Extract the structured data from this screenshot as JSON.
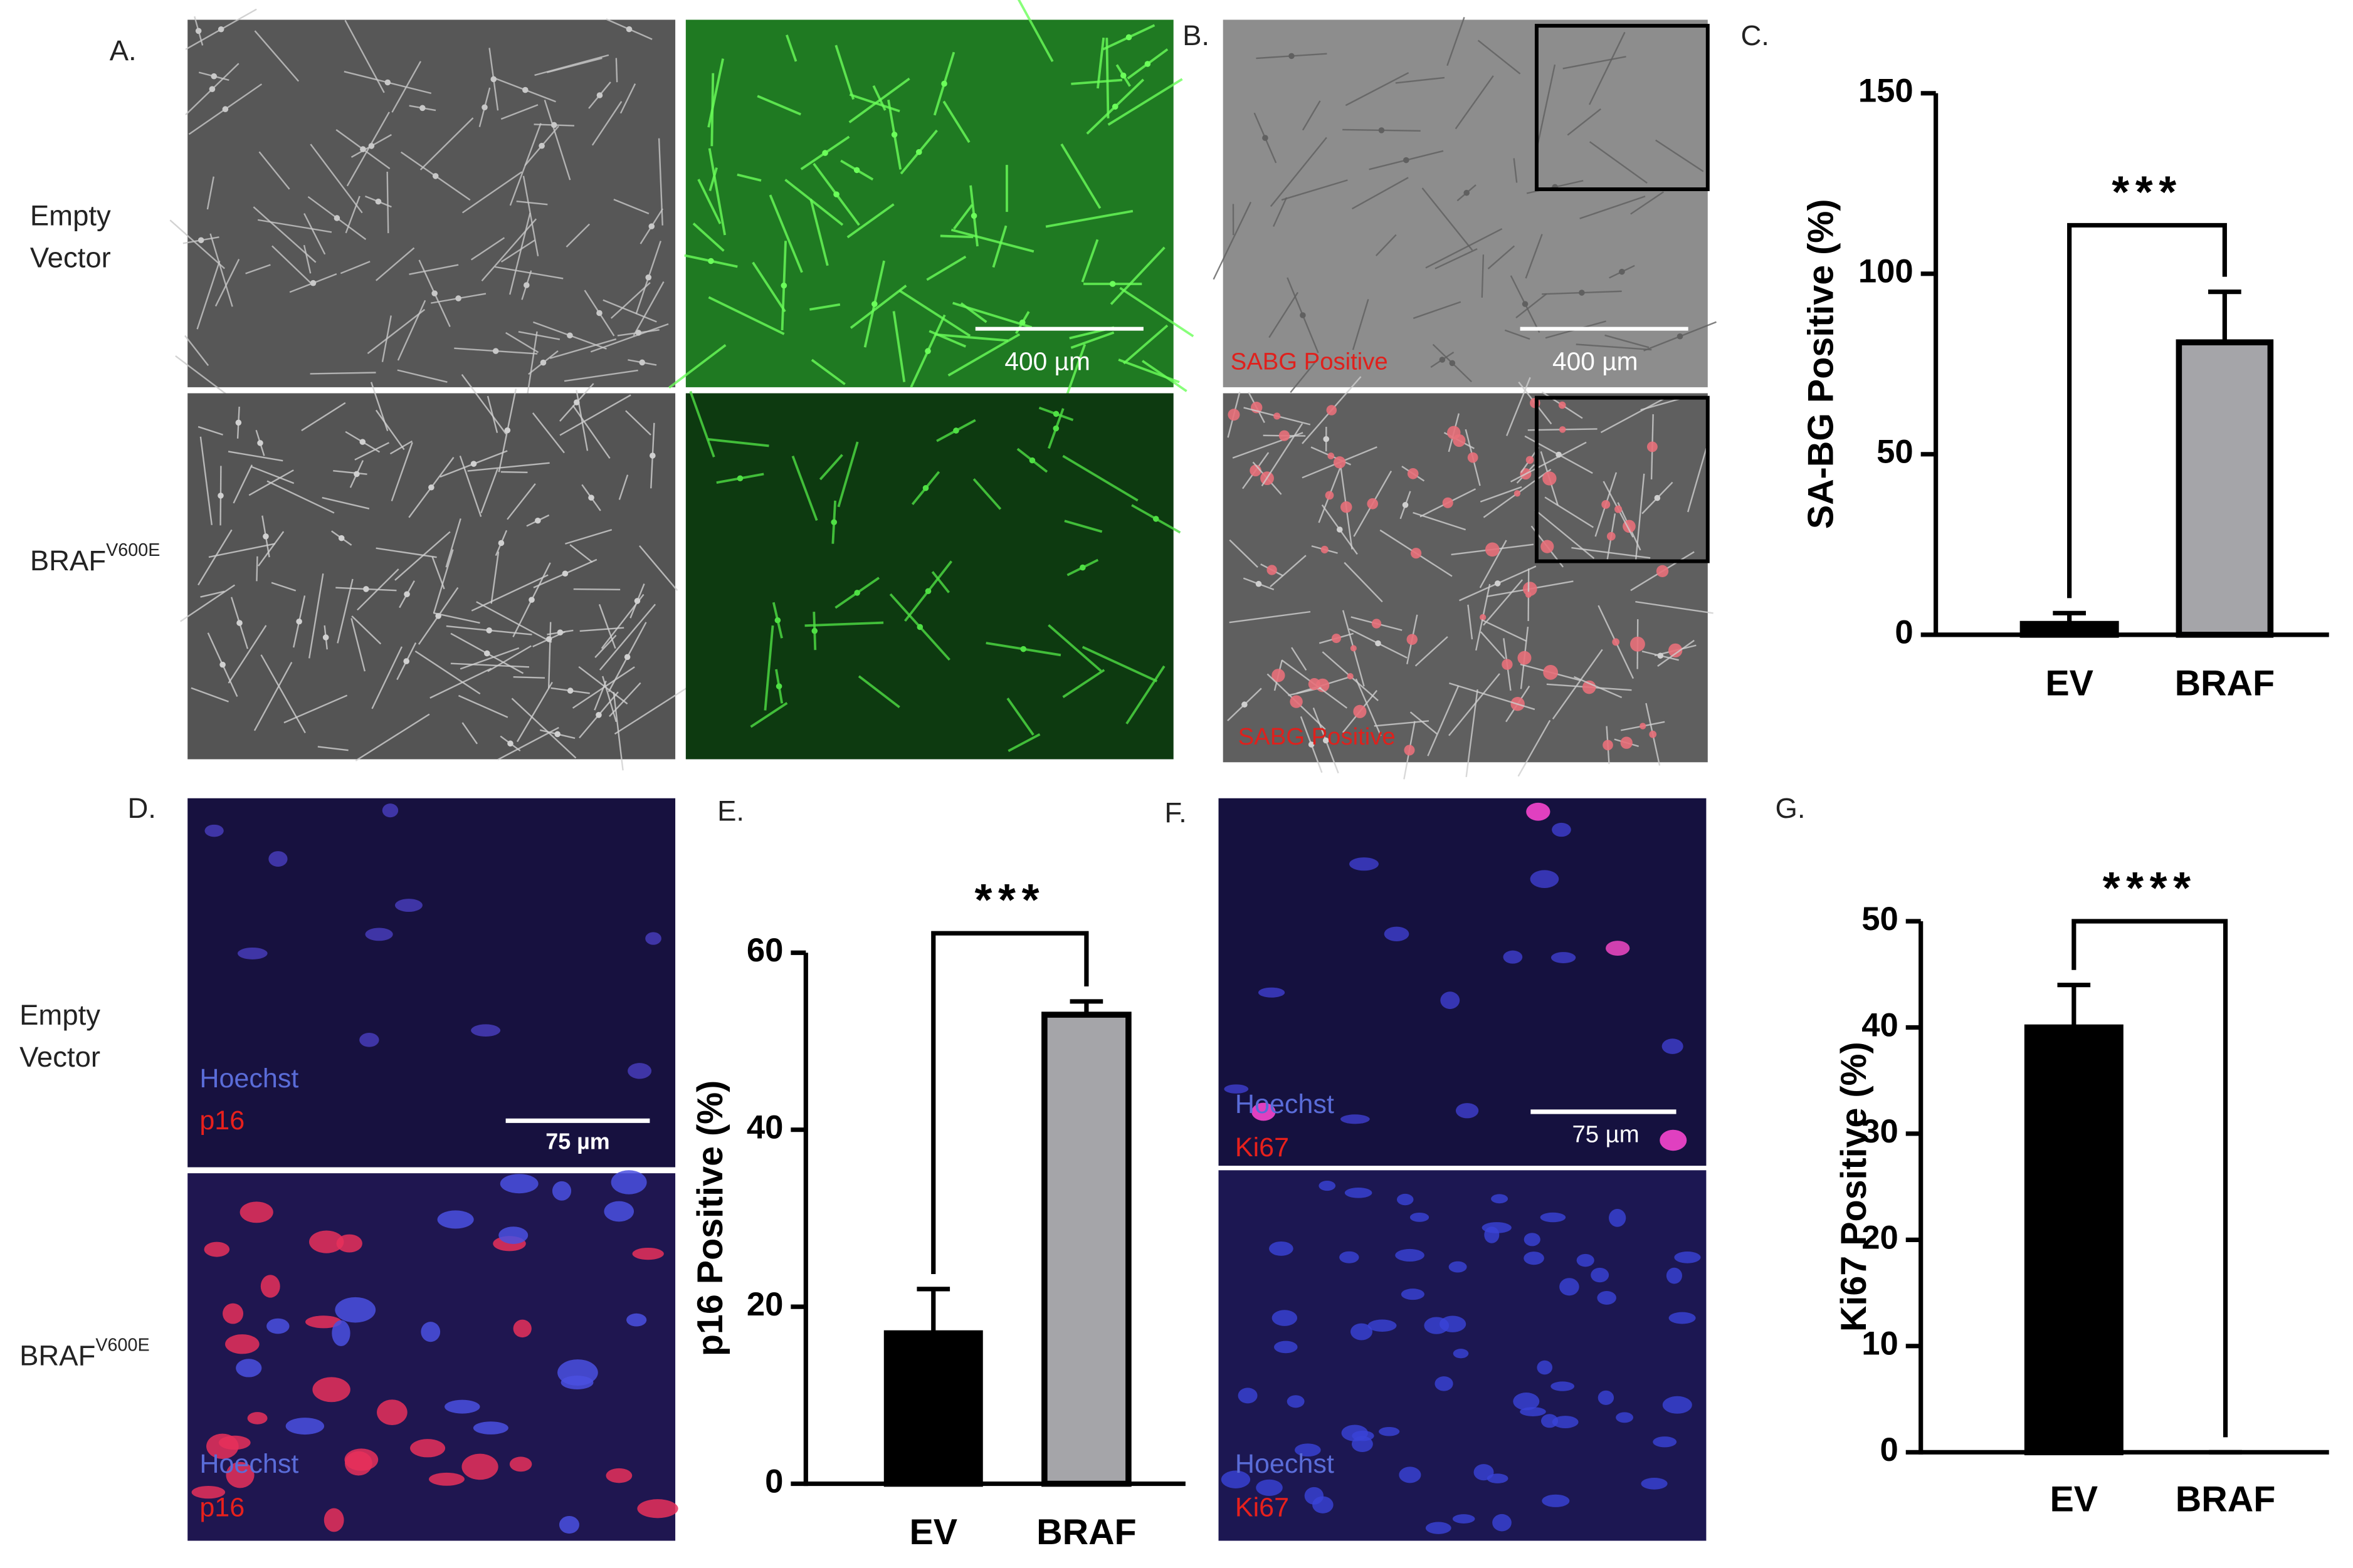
{
  "panel_labels": [
    "A.",
    "B.",
    "C.",
    "D.",
    "E.",
    "F.",
    "G."
  ],
  "condition_labels": {
    "empty_vector": [
      "Empty",
      "Vector"
    ],
    "braf": {
      "text": "BRAF",
      "superscript": "V600E"
    }
  },
  "panel_a": {
    "scale_bar": "400 µm"
  },
  "panel_b": {
    "scale_bar": "400 µm",
    "stain_labels": [
      "SABG Positive",
      "SABG Positive"
    ]
  },
  "panel_d": {
    "scale_bar": "75 µm",
    "stain_labels": [
      [
        "Hoechst",
        "p16"
      ],
      [
        "Hoechst",
        "p16"
      ]
    ]
  },
  "panel_f": {
    "scale_bar": "75 µm",
    "stain_labels": [
      [
        "Hoechst",
        "Ki67"
      ],
      [
        "Hoechst",
        "Ki67"
      ]
    ]
  },
  "chart_data": [
    {
      "type": "bar",
      "ylabel": "SA-BG Positive (%)",
      "categories": [
        "EV",
        "BRAF"
      ],
      "values": [
        3,
        81
      ],
      "errors": [
        3,
        14
      ],
      "colors": [
        "#000000",
        "#a5a5a9"
      ],
      "ylim": [
        0,
        150
      ],
      "yticks": [
        0,
        50,
        100,
        150
      ],
      "significance": "***"
    },
    {
      "type": "bar",
      "ylabel": "p16 Positive (%)",
      "categories": [
        "EV",
        "BRAF"
      ],
      "values": [
        17,
        53
      ],
      "errors": [
        5,
        1.5
      ],
      "colors": [
        "#000000",
        "#a5a5a9"
      ],
      "ylim": [
        0,
        60
      ],
      "yticks": [
        0,
        20,
        40,
        60
      ],
      "significance": "***"
    },
    {
      "type": "bar",
      "ylabel": "Ki67 Positive (%)",
      "categories": [
        "EV",
        "BRAF"
      ],
      "values": [
        40,
        0
      ],
      "errors": [
        4,
        0
      ],
      "colors": [
        "#000000",
        "#a5a5a9"
      ],
      "ylim": [
        0,
        50
      ],
      "yticks": [
        0,
        10,
        20,
        30,
        40,
        50
      ],
      "significance": "****"
    }
  ]
}
